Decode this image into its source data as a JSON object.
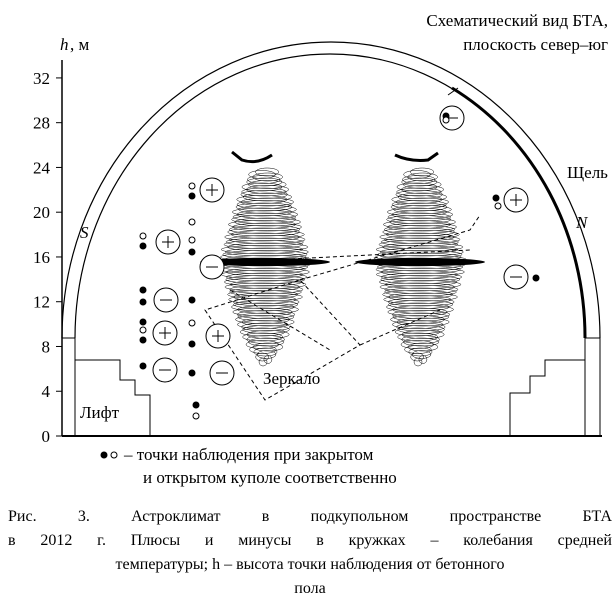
{
  "figure": {
    "title_line1": "Схематический вид БТА,",
    "title_line2": "плоскость север–юг",
    "axis_symbol": "h",
    "axis_unit": ", м",
    "yticks": [
      0,
      4,
      8,
      12,
      16,
      20,
      24,
      28,
      32
    ],
    "label_s": "S",
    "label_n": "N",
    "label_slit": "Щель",
    "label_mirror": "Зеркало",
    "label_lift": "Лифт",
    "legend_line1": "– точки наблюдения при закрытом",
    "legend_line2": "и открытом куполе соответственно"
  },
  "caption": {
    "lines": [
      "Рис. 3. Астроклимат в подкупольном пространстве БТА",
      "в 2012 г. Плюсы и минусы в кружках – колебания средней",
      "температуры; h – высота точки наблюдения от бетонного",
      "пола"
    ]
  }
}
